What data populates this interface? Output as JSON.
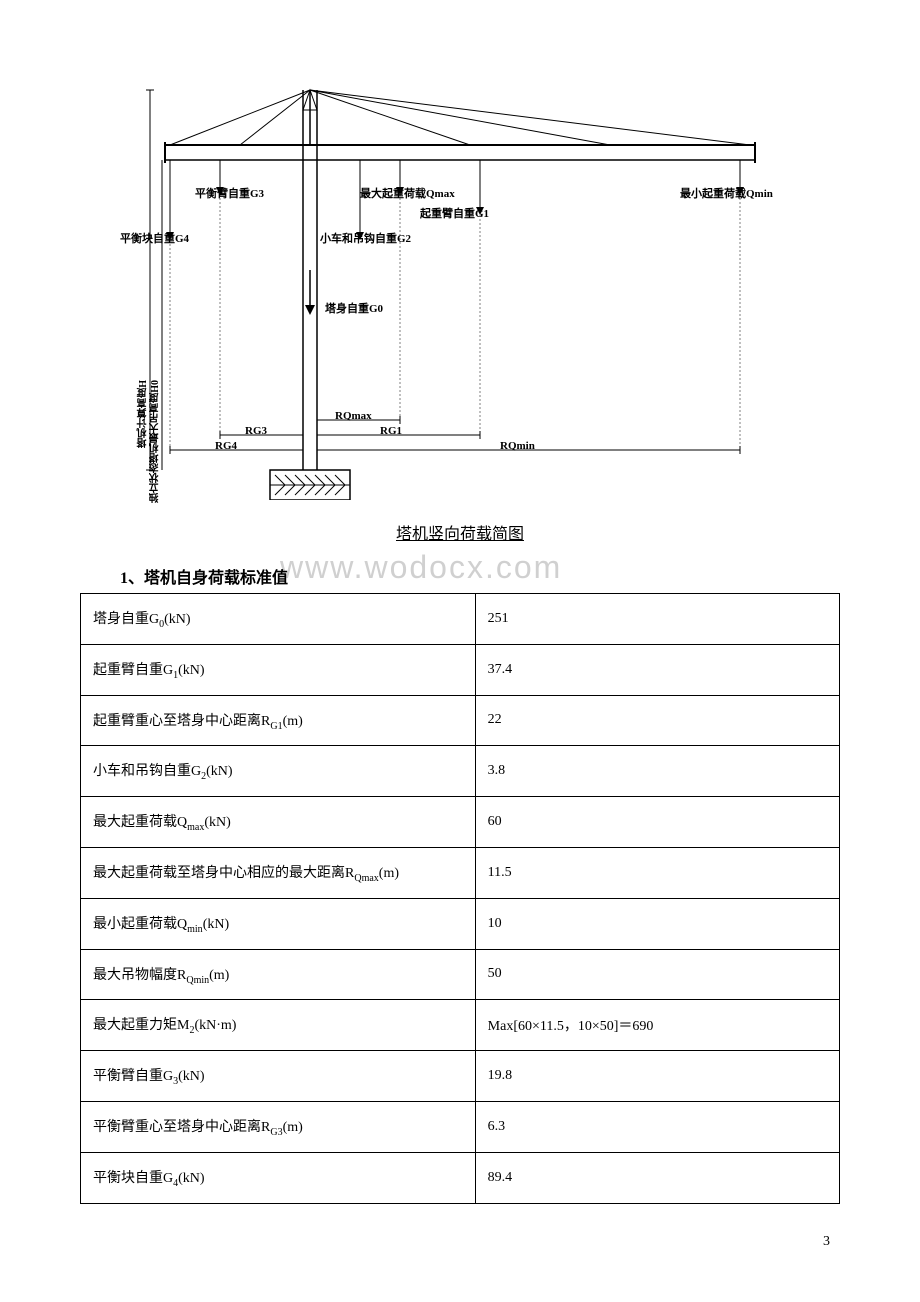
{
  "diagram": {
    "caption": "塔机竖向荷载简图",
    "labels": {
      "balance_arm": "平衡臂自重G3",
      "balance_block": "平衡块自重G4",
      "max_load": "最大起重荷载Qmax",
      "lift_arm": "起重臂自重G1",
      "trolley_hook": "小车和吊钩自重G2",
      "min_load": "最小起重荷载Qmin",
      "tower_body": "塔身自重G0",
      "rqmax": "RQmax",
      "rg3": "RG3",
      "rg1": "RG1",
      "rg4": "RG4",
      "rqmin": "RQmin",
      "vertical_left1": "塔机计算高度H",
      "vertical_left2": "独立状态塔机最大吊高度H0"
    },
    "colors": {
      "line": "#000000",
      "background": "#ffffff"
    }
  },
  "watermark": "www.wodocx.com",
  "section": {
    "number": "1",
    "title": "塔机自身荷载标准值"
  },
  "table": {
    "rows": [
      {
        "param": "塔身自重G",
        "sub": "0",
        "unit": "(kN)",
        "value": "251"
      },
      {
        "param": "起重臂自重G",
        "sub": "1",
        "unit": "(kN)",
        "value": "37.4"
      },
      {
        "param": "起重臂重心至塔身中心距离R",
        "sub": "G1",
        "unit": "(m)",
        "value": "22"
      },
      {
        "param": "小车和吊钩自重G",
        "sub": "2",
        "unit": "(kN)",
        "value": "3.8"
      },
      {
        "param": "最大起重荷载Q",
        "sub": "max",
        "unit": "(kN)",
        "value": "60"
      },
      {
        "param": "最大起重荷载至塔身中心相应的最大距离R",
        "sub": "Qmax",
        "unit": "(m)",
        "value": "11.5"
      },
      {
        "param": "最小起重荷载Q",
        "sub": "min",
        "unit": "(kN)",
        "value": "10"
      },
      {
        "param": "最大吊物幅度R",
        "sub": "Qmin",
        "unit": "(m)",
        "value": "50"
      },
      {
        "param": "最大起重力矩M",
        "sub": "2",
        "unit": "(kN·m)",
        "value": "Max[60×11.5，10×50]＝690"
      },
      {
        "param": "平衡臂自重G",
        "sub": "3",
        "unit": "(kN)",
        "value": "19.8"
      },
      {
        "param": "平衡臂重心至塔身中心距离R",
        "sub": "G3",
        "unit": "(m)",
        "value": "6.3"
      },
      {
        "param": "平衡块自重G",
        "sub": "4",
        "unit": "(kN)",
        "value": "89.4"
      }
    ]
  },
  "page_number": "3"
}
